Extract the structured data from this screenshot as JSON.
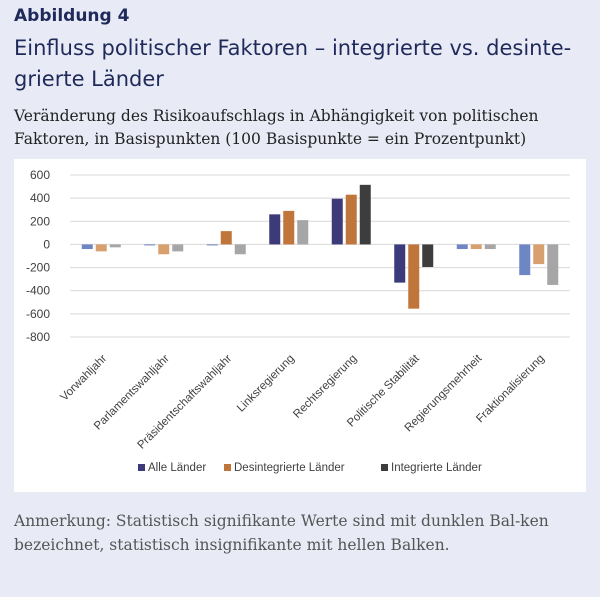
{
  "figure": {
    "label": "Abbildung 4",
    "title": "Einfluss politischer Faktoren – integrierte vs. desinte-grierte Länder",
    "subtitle": "Veränderung des Risikoaufschlags in Abhängigkeit von politischen Faktoren, in Basispunkten (100 Basispunkte = ein Prozentpunkt)",
    "note": "Anmerkung: Statistisch signifikante Werte sind mit dunklen Bal-ken bezeichnet, statistisch insignifikante mit hellen Balken."
  },
  "chart_data": {
    "type": "bar",
    "categories": [
      "Vorwahljahr",
      "Parlamentswahljahr",
      "Präsidentschaftswahljahr",
      "Linksregierung",
      "Rechtsregierung",
      "Politische Stabilität",
      "Regierungsmehrheit",
      "Fraktionalisierung"
    ],
    "series": [
      {
        "name": "Alle Länder",
        "color": "#3d3a7a",
        "light_color": "#6e86c4",
        "values": [
          -40,
          -5,
          -5,
          260,
          395,
          -330,
          -40,
          -265
        ],
        "significant": [
          false,
          false,
          false,
          true,
          true,
          true,
          false,
          false
        ]
      },
      {
        "name": "Desintegrierte Länder",
        "color": "#c0753a",
        "light_color": "#d9a06f",
        "values": [
          -60,
          -85,
          115,
          290,
          430,
          -555,
          -40,
          -170
        ],
        "significant": [
          false,
          false,
          true,
          true,
          true,
          true,
          false,
          false
        ]
      },
      {
        "name": "Integrierte Länder",
        "color": "#3d3d3d",
        "light_color": "#a6a6a6",
        "values": [
          -25,
          -60,
          -85,
          210,
          515,
          -195,
          -40,
          -350
        ],
        "significant": [
          false,
          false,
          false,
          false,
          true,
          true,
          false,
          false
        ]
      }
    ],
    "ylim": [
      -800,
      600
    ],
    "yticks": [
      600,
      400,
      200,
      0,
      -200,
      -400,
      -600,
      -800
    ],
    "grid": true,
    "legend_position": "bottom"
  }
}
